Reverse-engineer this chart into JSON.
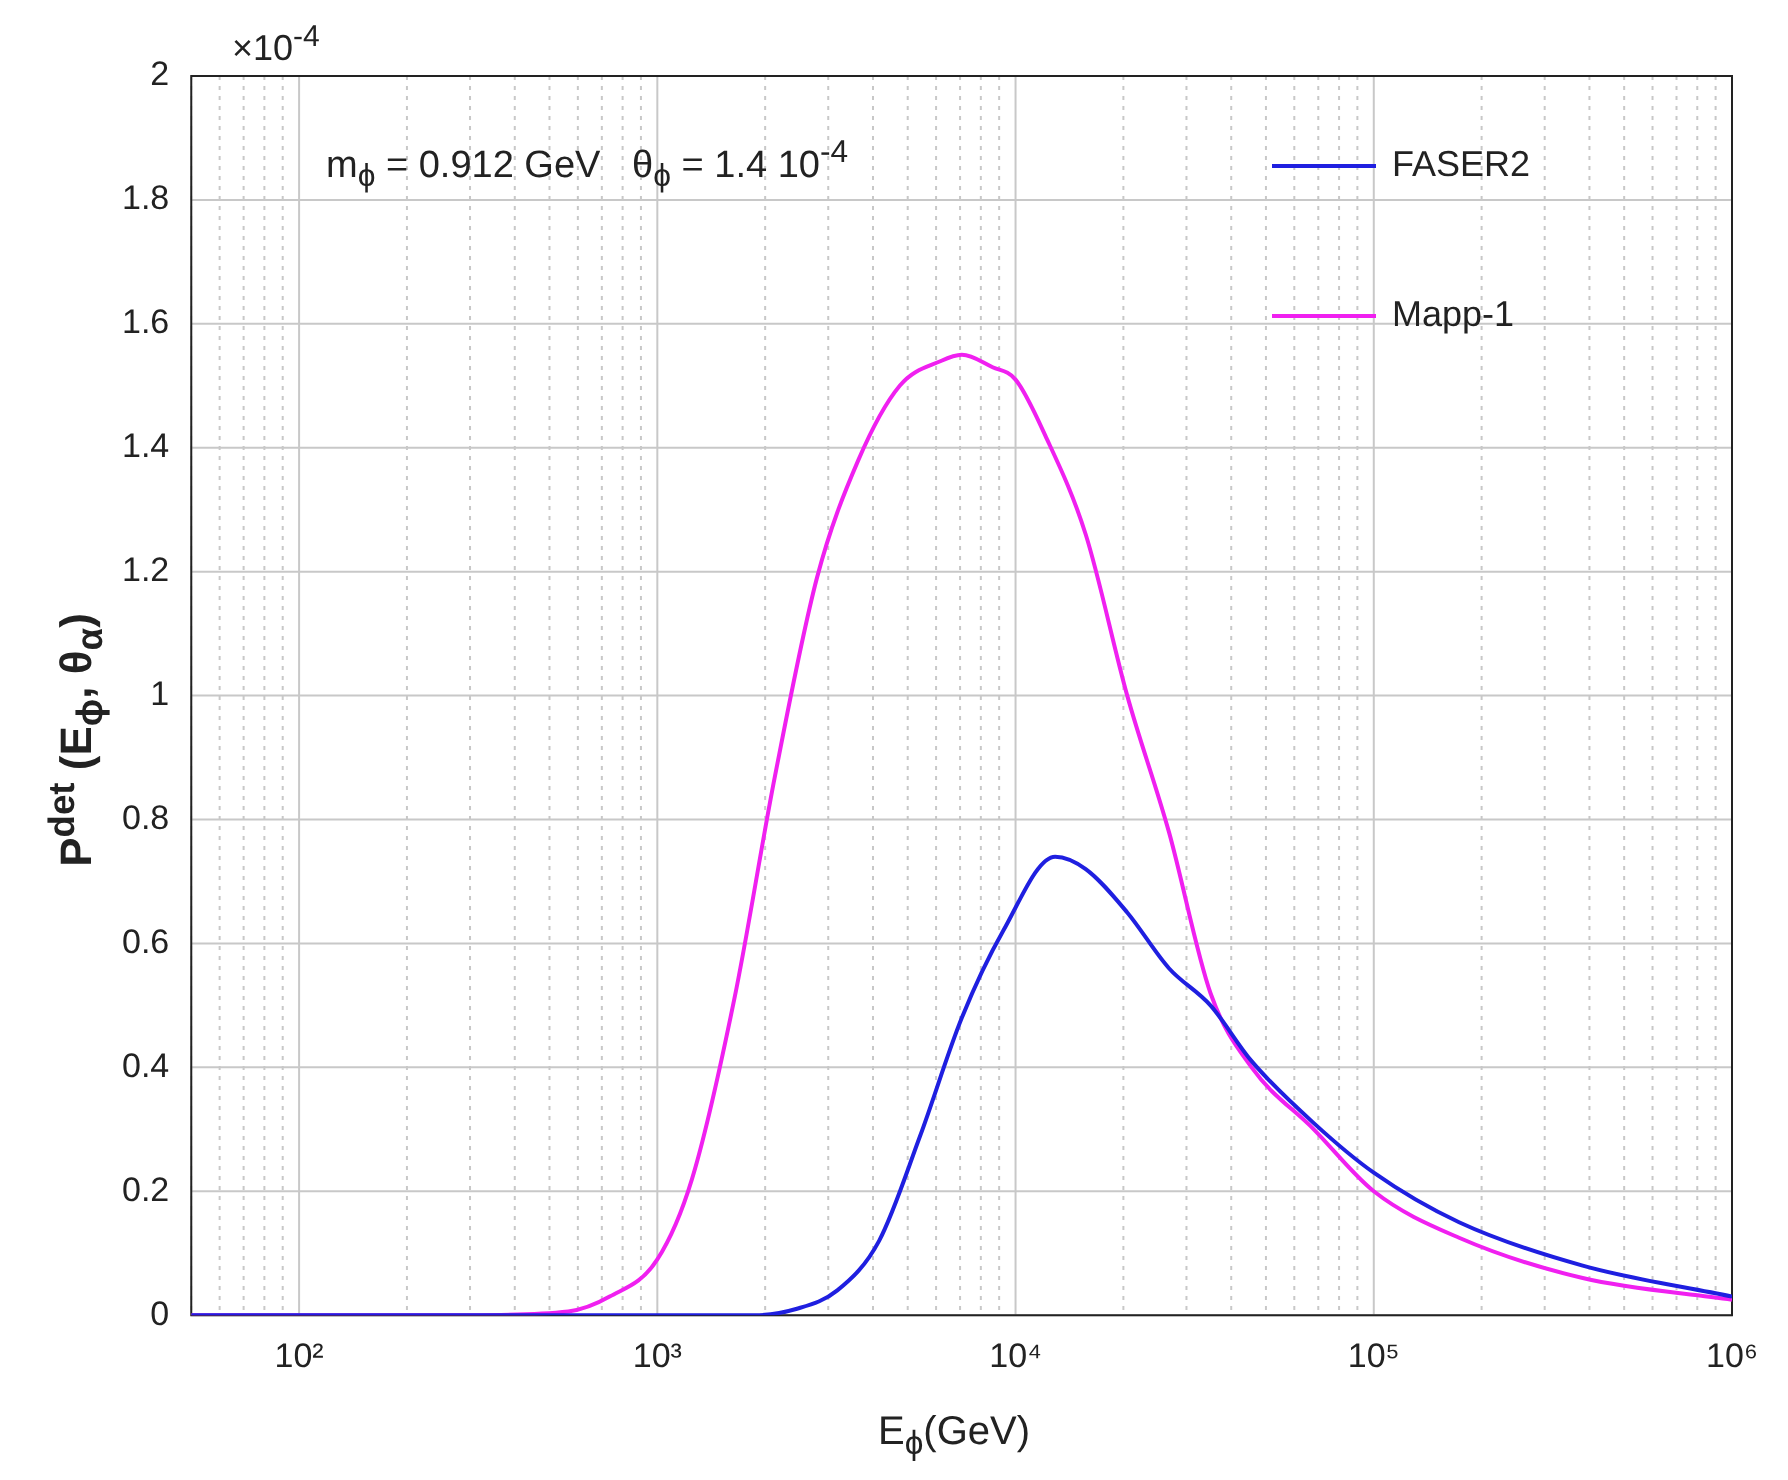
{
  "chart_data": {
    "type": "line",
    "xlabel": "E$_{ϕ}$(GeV)",
    "ylabel": "P$^{det}$ (E$_{ϕ}$, θ$_{α}$)",
    "annotations": [
      "×10$^{-4}$",
      "m$_{ϕ}$ = 0.912 GeV   θ$_{ϕ}$ = 1.4 10$^{-4}$"
    ],
    "log": "x",
    "grid": true,
    "legend": "top right",
    "marker": "none",
    "line_style": "solid",
    "xlim": [
      50,
      1000000
    ],
    "ylim": [
      0,
      2
    ],
    "xticks": [
      {
        "value": 50,
        "label": null
      },
      {
        "value": 60,
        "label": null
      },
      {
        "value": 70,
        "label": null
      },
      {
        "value": 80,
        "label": null
      },
      {
        "value": 90,
        "label": null
      },
      {
        "value": 100,
        "label": "10²"
      },
      {
        "value": 200,
        "label": null
      },
      {
        "value": 300,
        "label": null
      },
      {
        "value": 400,
        "label": null
      },
      {
        "value": 500,
        "label": null
      },
      {
        "value": 600,
        "label": null
      },
      {
        "value": 700,
        "label": null
      },
      {
        "value": 800,
        "label": null
      },
      {
        "value": 900,
        "label": null
      },
      {
        "value": 1000,
        "label": "10³"
      },
      {
        "value": 2000,
        "label": null
      },
      {
        "value": 3000,
        "label": null
      },
      {
        "value": 4000,
        "label": null
      },
      {
        "value": 5000,
        "label": null
      },
      {
        "value": 6000,
        "label": null
      },
      {
        "value": 7000,
        "label": null
      },
      {
        "value": 8000,
        "label": null
      },
      {
        "value": 9000,
        "label": null
      },
      {
        "value": 10000,
        "label": "10⁴"
      },
      {
        "value": 20000,
        "label": null
      },
      {
        "value": 30000,
        "label": null
      },
      {
        "value": 40000,
        "label": null
      },
      {
        "value": 50000,
        "label": null
      },
      {
        "value": 60000,
        "label": null
      },
      {
        "value": 70000,
        "label": null
      },
      {
        "value": 80000,
        "label": null
      },
      {
        "value": 90000,
        "label": null
      },
      {
        "value": 100000,
        "label": "10⁵"
      },
      {
        "value": 200000,
        "label": null
      },
      {
        "value": 300000,
        "label": null
      },
      {
        "value": 400000,
        "label": null
      },
      {
        "value": 500000,
        "label": null
      },
      {
        "value": 600000,
        "label": null
      },
      {
        "value": 700000,
        "label": null
      },
      {
        "value": 800000,
        "label": null
      },
      {
        "value": 900000,
        "label": null
      },
      {
        "value": 1000000,
        "label": "10⁶"
      }
    ],
    "yticks": [
      0,
      0.2,
      0.4,
      0.6,
      0.8,
      1,
      1.2,
      1.4,
      1.6,
      1.8,
      2
    ],
    "series": [
      {
        "name": "FASER2",
        "color": "#1f1fe0",
        "x": [
          50,
          500,
          1000,
          1870,
          2440,
          3180,
          4160,
          5420,
          7080,
          9230,
          12900,
          15700,
          20500,
          26800,
          35000,
          45600,
          68000,
          100000,
          173000,
          383000,
          1000000
        ],
        "values": [
          0,
          0,
          0,
          0,
          0.01,
          0.04,
          0.12,
          0.29,
          0.48,
          0.62,
          0.74,
          0.72,
          0.65,
          0.56,
          0.5,
          0.41,
          0.31,
          0.23,
          0.15,
          0.08,
          0.03
        ]
      },
      {
        "name": "Mapp-1",
        "color": "#f020f0",
        "x": [
          50,
          300,
          564,
          736,
          1000,
          1250,
          1640,
          2130,
          2790,
          3640,
          4750,
          6190,
          7080,
          8630,
          10000,
          12100,
          15700,
          20500,
          26800,
          35000,
          45600,
          68000,
          100000,
          173000,
          383000,
          1000000
        ],
        "values": [
          0,
          0,
          0.006,
          0.03,
          0.09,
          0.22,
          0.51,
          0.87,
          1.19,
          1.38,
          1.5,
          1.54,
          1.55,
          1.53,
          1.51,
          1.42,
          1.26,
          1.0,
          0.78,
          0.52,
          0.4,
          0.3,
          0.2,
          0.125,
          0.06,
          0.025
        ]
      }
    ]
  }
}
